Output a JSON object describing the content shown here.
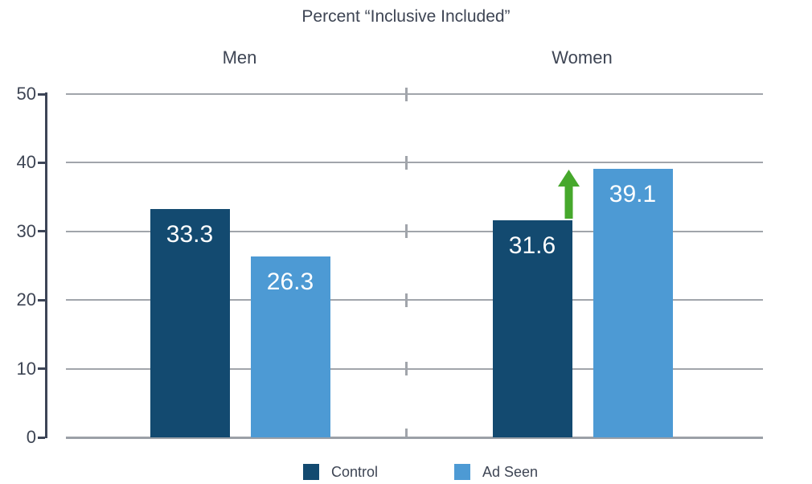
{
  "title": "Percent “Inclusive Included”",
  "chart_data": {
    "type": "bar",
    "categories": [
      "Men",
      "Women"
    ],
    "series": [
      {
        "name": "Control",
        "color": "#134A70",
        "values": [
          33.3,
          31.6
        ]
      },
      {
        "name": "Ad Seen",
        "color": "#4D9AD4",
        "values": [
          26.3,
          39.1
        ]
      }
    ],
    "ylim": [
      0,
      50
    ],
    "yticks": [
      0,
      10,
      20,
      30,
      40,
      50
    ],
    "grid": true,
    "legend_position": "bottom",
    "value_labels": [
      "33.3",
      "26.3",
      "31.6",
      "39.1"
    ],
    "annotations": [
      {
        "type": "arrow-up",
        "group": "Women",
        "between": [
          "Control",
          "Ad Seen"
        ],
        "color": "#46A82C"
      }
    ]
  },
  "legend": {
    "items": [
      {
        "label": "Control",
        "color": "#134A70"
      },
      {
        "label": "Ad Seen",
        "color": "#4D9AD4"
      }
    ]
  },
  "colors": {
    "control": "#134A70",
    "ad_seen": "#4D9AD4",
    "arrow_green": "#46A82C",
    "gridline": "#A1A5AB",
    "axis": "#3D4557",
    "text": "#3E4554",
    "bar_value_text": "#FFFFFF"
  }
}
